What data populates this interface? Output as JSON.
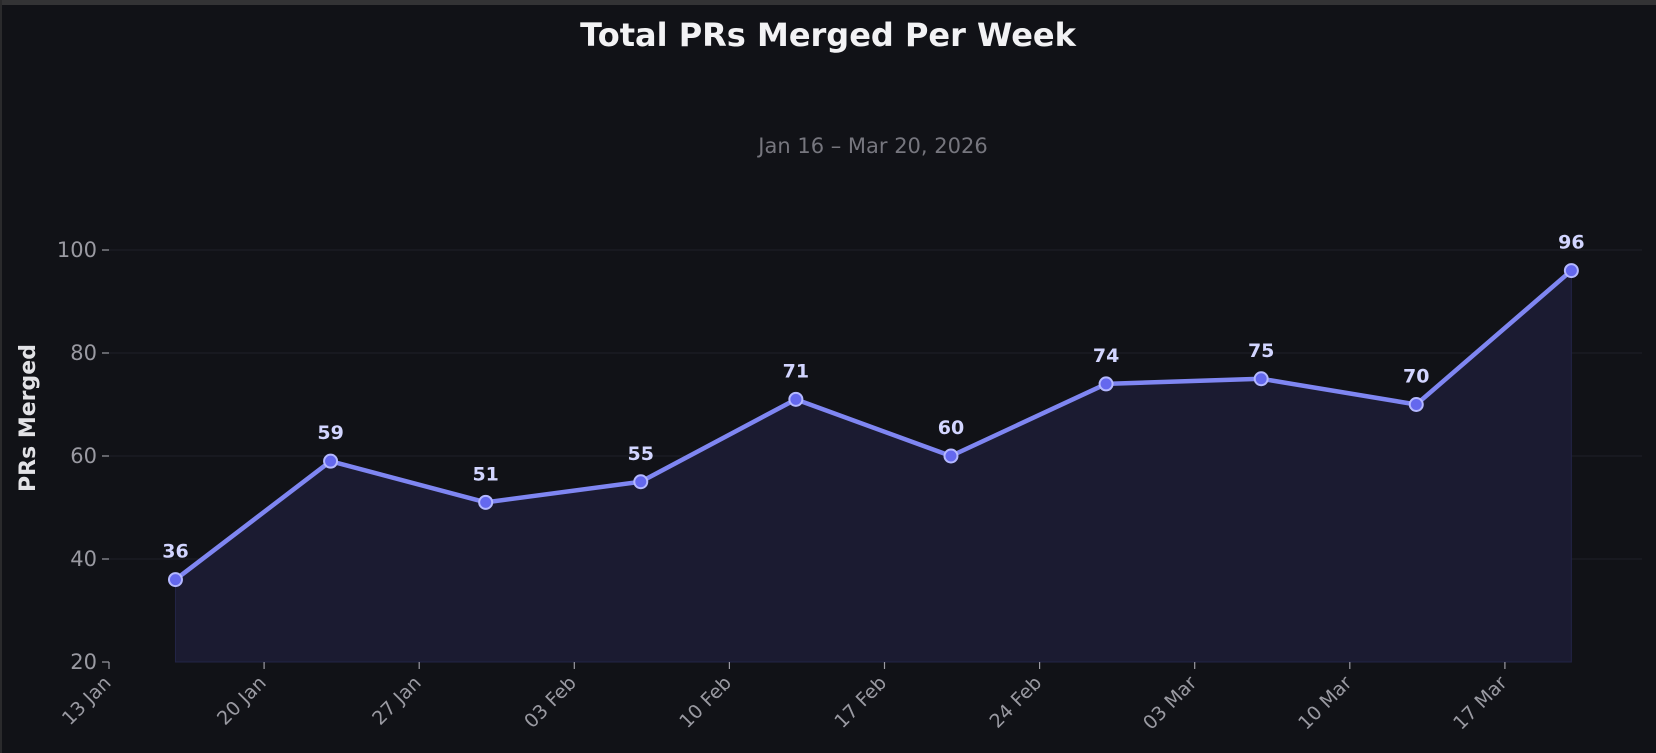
{
  "chart_data": {
    "type": "area",
    "title": "Total PRs Merged Per Week",
    "subtitle": "Jan 16 – Mar 20, 2026",
    "xlabel": "",
    "ylabel": "PRs Merged",
    "x": [
      "2026-01-16",
      "2026-01-23",
      "2026-01-30",
      "2026-02-06",
      "2026-02-13",
      "2026-02-20",
      "2026-02-27",
      "2026-03-06",
      "2026-03-13",
      "2026-03-20"
    ],
    "values": [
      36,
      59,
      51,
      55,
      71,
      60,
      74,
      75,
      70,
      96
    ],
    "data_labels": [
      "36",
      "59",
      "51",
      "55",
      "71",
      "60",
      "74",
      "75",
      "70",
      "96"
    ],
    "xticks": [
      "13 Jan",
      "20 Jan",
      "27 Jan",
      "03 Feb",
      "10 Feb",
      "17 Feb",
      "24 Feb",
      "03 Mar",
      "10 Mar",
      "17 Mar"
    ],
    "xtick_dates": [
      "2026-01-13",
      "2026-01-20",
      "2026-01-27",
      "2026-02-03",
      "2026-02-10",
      "2026-02-17",
      "2026-02-24",
      "2026-03-03",
      "2026-03-10",
      "2026-03-17"
    ],
    "yticks": [
      "20",
      "40",
      "60",
      "80",
      "100"
    ],
    "ytick_values": [
      20,
      40,
      60,
      80,
      100
    ],
    "xlim": [
      "2026-01-13",
      "2026-03-23"
    ],
    "ylim": [
      20,
      100
    ],
    "grid": "horizontal",
    "colors": {
      "background": "#111217",
      "line": "#7f86f2",
      "marker_fill": "#6468ee",
      "marker_edge": "#b4b8ff",
      "area": "#1b1b31",
      "grid": "#1f2029",
      "label": "#d2d5ff",
      "tick": "#9a9aa2"
    }
  }
}
